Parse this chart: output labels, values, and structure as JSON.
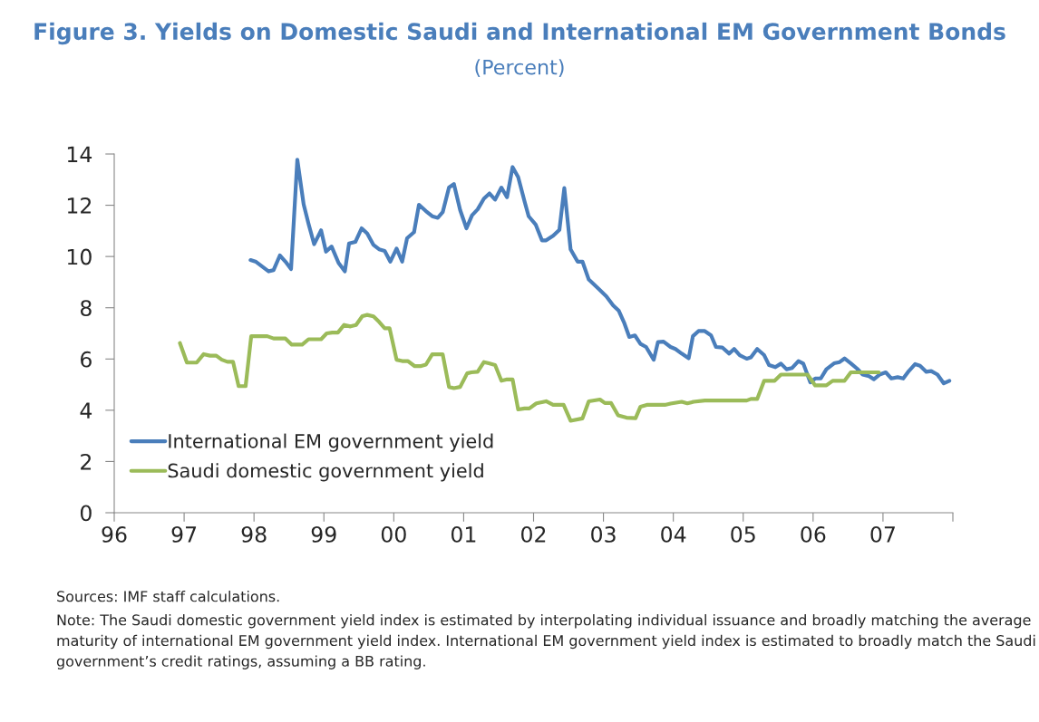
{
  "chart_data": {
    "type": "line",
    "title": "Figure 3. Yields on Domestic Saudi and International EM Government Bonds",
    "subtitle": "(Percent)",
    "series": [
      {
        "name": "International EM government yield",
        "color": "#4a7ebb",
        "x": [
          1997.95,
          1998.03,
          1998.21,
          1998.28,
          1998.37,
          1998.45,
          1998.53,
          1998.62,
          1998.71,
          1998.78,
          1998.86,
          1998.96,
          1999.03,
          1999.11,
          1999.21,
          1999.3,
          1999.36,
          1999.45,
          1999.54,
          1999.62,
          1999.71,
          1999.79,
          1999.87,
          1999.95,
          2000.04,
          2000.12,
          2000.19,
          2000.29,
          2000.36,
          2000.46,
          2000.55,
          2000.63,
          2000.7,
          2000.79,
          2000.86,
          2000.95,
          2001.04,
          2001.12,
          2001.2,
          2001.29,
          2001.37,
          2001.45,
          2001.54,
          2001.62,
          2001.7,
          2001.78,
          2001.87,
          2001.93,
          2002.03,
          2002.12,
          2002.18,
          2002.28,
          2002.37,
          2002.44,
          2002.53,
          2002.63,
          2002.7,
          2002.79,
          2002.93,
          2003.04,
          2003.14,
          2003.22,
          2003.3,
          2003.37,
          2003.45,
          2003.53,
          2003.61,
          2003.72,
          2003.78,
          2003.86,
          2003.96,
          2004.03,
          2004.12,
          2004.22,
          2004.28,
          2004.36,
          2004.45,
          2004.54,
          2004.61,
          2004.7,
          2004.8,
          2004.87,
          2004.95,
          2005.05,
          2005.11,
          2005.2,
          2005.3,
          2005.37,
          2005.46,
          2005.54,
          2005.62,
          2005.7,
          2005.79,
          2005.86,
          2005.96,
          2006.03,
          2006.11,
          2006.19,
          2006.3,
          2006.38,
          2006.45,
          2006.54,
          2006.63,
          2006.71,
          2006.8,
          2006.87,
          2006.95,
          2007.04,
          2007.12,
          2007.21,
          2007.29,
          2007.37,
          2007.46,
          2007.53,
          2007.62,
          2007.69,
          2007.78,
          2007.87,
          2007.95
        ],
        "values": [
          9.86,
          9.79,
          9.42,
          9.47,
          10.04,
          9.8,
          9.51,
          13.78,
          12.04,
          11.28,
          10.48,
          11.02,
          10.19,
          10.39,
          9.75,
          9.42,
          10.51,
          10.57,
          11.1,
          10.9,
          10.45,
          10.28,
          10.22,
          9.8,
          10.31,
          9.8,
          10.71,
          10.95,
          12.02,
          11.77,
          11.57,
          11.51,
          11.73,
          12.69,
          12.83,
          11.81,
          11.1,
          11.61,
          11.84,
          12.26,
          12.46,
          12.22,
          12.69,
          12.31,
          13.49,
          13.1,
          12.16,
          11.57,
          11.25,
          10.63,
          10.63,
          10.81,
          11.04,
          12.67,
          10.28,
          9.8,
          9.8,
          9.1,
          8.74,
          8.45,
          8.09,
          7.88,
          7.39,
          6.86,
          6.92,
          6.59,
          6.47,
          5.97,
          6.66,
          6.68,
          6.47,
          6.39,
          6.21,
          6.03,
          6.89,
          7.09,
          7.09,
          6.92,
          6.47,
          6.45,
          6.21,
          6.39,
          6.15,
          6.01,
          6.06,
          6.39,
          6.15,
          5.76,
          5.68,
          5.82,
          5.6,
          5.65,
          5.92,
          5.82,
          5.09,
          5.24,
          5.24,
          5.6,
          5.83,
          5.88,
          6.02,
          5.83,
          5.62,
          5.39,
          5.33,
          5.21,
          5.39,
          5.48,
          5.24,
          5.29,
          5.24,
          5.53,
          5.8,
          5.74,
          5.5,
          5.53,
          5.39,
          5.05,
          5.15
        ]
      },
      {
        "name": "Saudi domestic government yield",
        "color": "#9bbb59",
        "x": [
          1996.94,
          1997.04,
          1997.18,
          1997.28,
          1997.37,
          1997.46,
          1997.54,
          1997.62,
          1997.7,
          1997.78,
          1997.88,
          1997.96,
          1998.19,
          1998.28,
          1998.45,
          1998.54,
          1998.69,
          1998.78,
          1998.96,
          1999.04,
          1999.12,
          1999.2,
          1999.29,
          1999.38,
          1999.46,
          1999.55,
          1999.62,
          1999.71,
          1999.79,
          1999.87,
          1999.94,
          2000.04,
          2000.12,
          2000.2,
          2000.3,
          2000.38,
          2000.46,
          2000.55,
          2000.7,
          2000.79,
          2000.86,
          2000.95,
          2001.05,
          2001.11,
          2001.2,
          2001.29,
          2001.36,
          2001.45,
          2001.54,
          2001.61,
          2001.7,
          2001.78,
          2001.87,
          2001.94,
          2002.04,
          2002.18,
          2002.28,
          2002.43,
          2002.53,
          2002.7,
          2002.79,
          2002.95,
          2003.02,
          2003.11,
          2003.21,
          2003.33,
          2003.46,
          2003.53,
          2003.62,
          2003.88,
          2003.96,
          2004.12,
          2004.2,
          2004.29,
          2004.45,
          2005.05,
          2005.11,
          2005.2,
          2005.3,
          2005.45,
          2005.54,
          2005.92,
          2006.03,
          2006.19,
          2006.28,
          2006.45,
          2006.54,
          2006.94
        ],
        "values": [
          6.62,
          5.86,
          5.86,
          6.19,
          6.13,
          6.13,
          5.97,
          5.89,
          5.89,
          4.94,
          4.94,
          6.89,
          6.89,
          6.8,
          6.8,
          6.56,
          6.56,
          6.77,
          6.77,
          7.0,
          7.03,
          7.03,
          7.33,
          7.27,
          7.33,
          7.67,
          7.72,
          7.66,
          7.45,
          7.2,
          7.2,
          5.97,
          5.92,
          5.92,
          5.72,
          5.72,
          5.78,
          6.18,
          6.18,
          4.91,
          4.86,
          4.91,
          5.44,
          5.48,
          5.5,
          5.88,
          5.83,
          5.76,
          5.15,
          5.2,
          5.2,
          4.03,
          4.07,
          4.07,
          4.27,
          4.35,
          4.21,
          4.21,
          3.59,
          3.68,
          4.35,
          4.42,
          4.28,
          4.28,
          3.8,
          3.71,
          3.69,
          4.14,
          4.21,
          4.21,
          4.26,
          4.33,
          4.27,
          4.33,
          4.38,
          4.38,
          4.44,
          4.44,
          5.15,
          5.15,
          5.39,
          5.39,
          4.97,
          4.97,
          5.15,
          5.15,
          5.48,
          5.48
        ]
      }
    ],
    "xlim": [
      1996,
      2008
    ],
    "xticks": [
      {
        "value": 1996,
        "label": "96"
      },
      {
        "value": 1997,
        "label": "97"
      },
      {
        "value": 1998,
        "label": "98"
      },
      {
        "value": 1999,
        "label": "99"
      },
      {
        "value": 2000,
        "label": "00"
      },
      {
        "value": 2001,
        "label": "01"
      },
      {
        "value": 2002,
        "label": "02"
      },
      {
        "value": 2003,
        "label": "03"
      },
      {
        "value": 2004,
        "label": "04"
      },
      {
        "value": 2005,
        "label": "05"
      },
      {
        "value": 2006,
        "label": "06"
      },
      {
        "value": 2007,
        "label": "07"
      },
      {
        "value": 2008,
        "label": null
      }
    ],
    "ylim": [
      0,
      14
    ],
    "yticks": [
      0,
      2,
      4,
      6,
      8,
      10,
      12,
      14
    ],
    "grid": false,
    "legend": "bottom left",
    "annotations": [
      "Sources: IMF staff calculations.",
      "Note: The Saudi domestic government yield index is estimated by interpolating individual issuance and broadly matching the average maturity of international EM government yield index. International EM government yield index is estimated to broadly match the Saudi government’s credit ratings, assuming a BB rating."
    ]
  }
}
